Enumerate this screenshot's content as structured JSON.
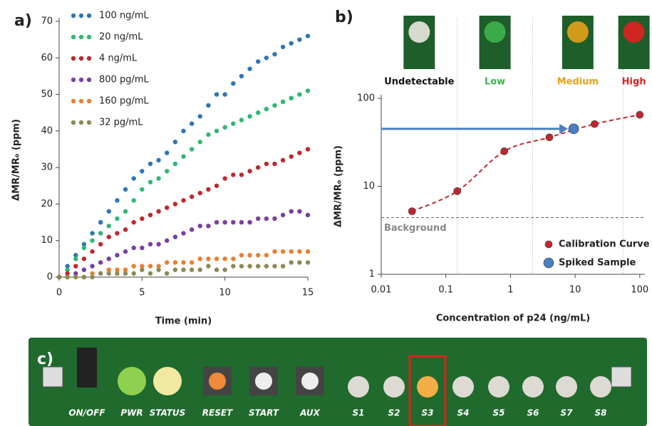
{
  "chart_data": [
    {
      "type": "scatter",
      "panel_label": "a)",
      "xlabel": "Time (min)",
      "ylabel": "ΔMR/MR₀ (ppm)",
      "x": [
        0,
        0.5,
        1,
        1.5,
        2,
        2.5,
        3,
        3.5,
        4,
        4.5,
        5,
        5.5,
        6,
        6.5,
        7,
        7.5,
        8,
        8.5,
        9,
        9.5,
        10,
        10.5,
        11,
        11.5,
        12,
        12.5,
        13,
        13.5,
        14,
        14.5,
        15
      ],
      "series": [
        {
          "name": "100 ng/mL",
          "color": "#2e75b6",
          "values": [
            0,
            3,
            6,
            9,
            12,
            15,
            18,
            21,
            24,
            27,
            29,
            31,
            32,
            34,
            37,
            40,
            42,
            44,
            47,
            50,
            50,
            53,
            55,
            57,
            59,
            60,
            61,
            63,
            64,
            65,
            66
          ]
        },
        {
          "name": "20 ng/mL",
          "color": "#2eb872",
          "values": [
            0,
            2,
            5,
            8,
            10,
            12,
            14,
            16,
            18,
            21,
            24,
            26,
            27,
            29,
            31,
            33,
            35,
            37,
            39,
            40,
            41,
            42,
            43,
            44,
            45,
            46,
            47,
            48,
            49,
            50,
            51
          ]
        },
        {
          "name": "4 ng/mL",
          "color": "#c0272d",
          "values": [
            0,
            1,
            3,
            5,
            7,
            9,
            11,
            12,
            13,
            15,
            16,
            17,
            18,
            19,
            20,
            21,
            22,
            23,
            24,
            25,
            27,
            28,
            28,
            29,
            30,
            31,
            31,
            32,
            33,
            34,
            35
          ]
        },
        {
          "name": "800 pg/mL",
          "color": "#7a3fa0",
          "values": [
            0,
            0,
            1,
            2,
            3,
            4,
            5,
            6,
            7,
            8,
            8,
            9,
            9,
            10,
            11,
            12,
            13,
            14,
            14,
            15,
            15,
            15,
            15,
            15,
            16,
            16,
            16,
            17,
            18,
            18,
            17
          ]
        },
        {
          "name": "160 pg/mL",
          "color": "#ed7d31",
          "values": [
            0,
            0,
            0,
            0,
            1,
            1,
            2,
            2,
            2,
            3,
            3,
            3,
            3,
            4,
            4,
            4,
            4,
            5,
            5,
            5,
            5,
            5,
            6,
            6,
            6,
            6,
            7,
            7,
            7,
            7,
            7
          ]
        },
        {
          "name": "32 pg/mL",
          "color": "#8c8a55",
          "values": [
            0,
            0,
            0,
            0,
            0,
            1,
            1,
            1,
            1,
            1,
            2,
            1,
            2,
            1,
            2,
            2,
            2,
            2,
            3,
            2,
            2,
            3,
            3,
            3,
            3,
            3,
            3,
            3,
            4,
            4,
            4
          ]
        }
      ],
      "xlim": [
        0,
        15
      ],
      "xticks": [
        0,
        5,
        10,
        15
      ],
      "ylim": [
        0,
        70
      ],
      "yticks": [
        0,
        10,
        20,
        30,
        40,
        50,
        60,
        70
      ]
    },
    {
      "type": "scatter",
      "panel_label": "b)",
      "log_scale": true,
      "xlabel": "Concentration of p24 (ng/mL)",
      "ylabel": "ΔMR/MR₀ (ppm)",
      "series": [
        {
          "name": "Calibration Curve",
          "color": "#c0272d",
          "x": [
            0.03,
            0.15,
            0.8,
            4,
            20,
            100
          ],
          "values": [
            5.2,
            8.8,
            25,
            36,
            51,
            65
          ]
        },
        {
          "name": "Spiked Sample",
          "color": "#4a7fc1",
          "x": [
            9.5
          ],
          "values": [
            45
          ]
        }
      ],
      "background": {
        "value": 4.4,
        "label": "Background"
      },
      "region_bounds": [
        0.15,
        2.2,
        55
      ],
      "regions": [
        {
          "label": "Undetectable",
          "color": "#111111"
        },
        {
          "label": "Low",
          "color": "#3cb44b"
        },
        {
          "label": "Medium",
          "color": "#e3a21a"
        },
        {
          "label": "High",
          "color": "#e02020"
        }
      ],
      "xlim": [
        0.01,
        120
      ],
      "xticks": [
        0.01,
        0.1,
        1,
        10,
        100
      ],
      "ylim": [
        1,
        100
      ],
      "yticks": [
        1,
        10,
        100
      ]
    }
  ],
  "photo": {
    "panel_label": "c)",
    "labels": [
      "ON/OFF",
      "PWR",
      "STATUS",
      "RESET",
      "START",
      "AUX",
      "S1",
      "S2",
      "S3",
      "S4",
      "S5",
      "S6",
      "S7",
      "S8"
    ]
  }
}
